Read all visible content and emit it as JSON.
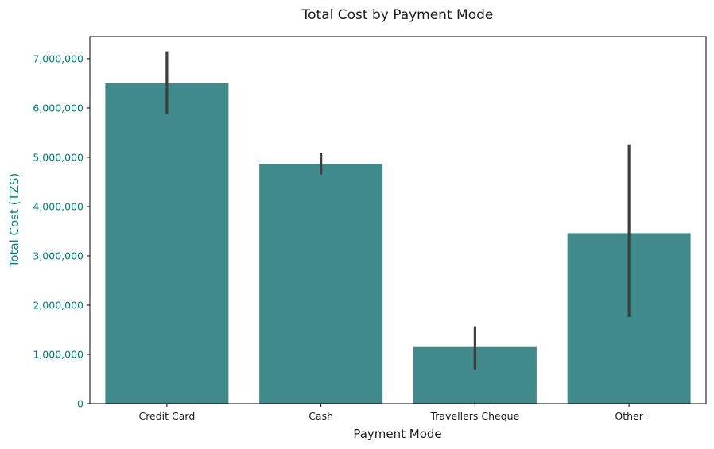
{
  "chart_data": {
    "type": "bar",
    "title": "Total Cost by Payment Mode",
    "xlabel": "Payment Mode",
    "ylabel": "Total Cost (TZS)",
    "categories": [
      "Credit Card",
      "Cash",
      "Travellers Cheque",
      "Other"
    ],
    "values": [
      6500000,
      4870000,
      1150000,
      3460000
    ],
    "error_low": [
      5870000,
      4650000,
      680000,
      1760000
    ],
    "error_high": [
      7150000,
      5080000,
      1570000,
      5260000
    ],
    "ylim": [
      0,
      7450000
    ],
    "yticks": [
      0,
      1000000,
      2000000,
      3000000,
      4000000,
      5000000,
      6000000,
      7000000
    ],
    "ytick_labels": [
      "0",
      "1,000,000",
      "2,000,000",
      "3,000,000",
      "4,000,000",
      "5,000,000",
      "6,000,000",
      "7,000,000"
    ],
    "grid": false,
    "colors": {
      "bar": "#408a8b",
      "error_bar": "#3d3d3d",
      "y_axis_text": "#008080",
      "axis": "#000000"
    }
  }
}
